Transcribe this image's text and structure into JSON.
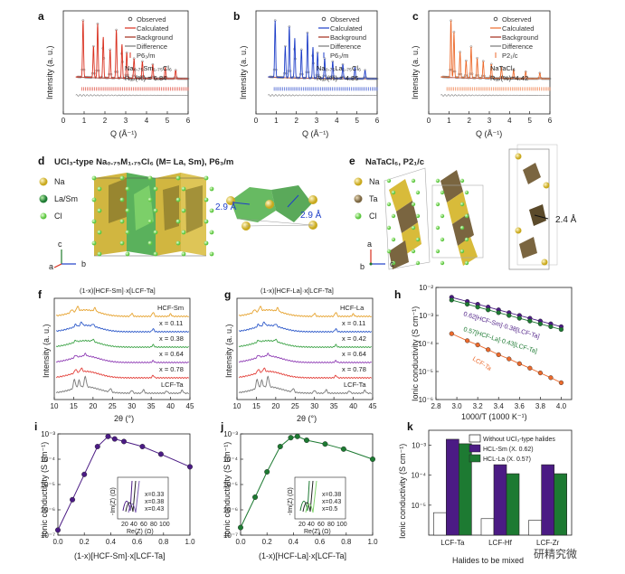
{
  "colors": {
    "red": "#d9301f",
    "blue": "#1f3fc8",
    "orange": "#ec6a2c",
    "purple": "#4b1b84",
    "green": "#1d7a32",
    "gray": "#777777",
    "gold": "#c9a91e",
    "lightgreen": "#7fd36a"
  },
  "panels": {
    "a": {
      "label": "a",
      "legend": [
        "Observed",
        "Calculated",
        "Background",
        "Difference"
      ],
      "space_group": "P6₃/m",
      "formula": "Na₀.₇₅Sm₁.₇₅Cl₆",
      "rwp": "Rᵤₚ(%) = 6.84",
      "ylabel": "Intensity (a. u.)",
      "xlabel": "Q (Å⁻¹)"
    },
    "b": {
      "label": "b",
      "legend": [
        "Observed",
        "Calculated",
        "Background",
        "Difference"
      ],
      "space_group": "P6₃/m",
      "formula": "Na₀.₇₅La₁.₇₅Cl₆",
      "rwp": "Rᵤₚ(%) = 4.86",
      "ylabel": "Intensity (a. u.)",
      "xlabel": "Q (Å⁻¹)"
    },
    "c": {
      "label": "c",
      "legend": [
        "Observed",
        "Calculated",
        "Background",
        "Difference"
      ],
      "space_group": "P2₁/c",
      "formula": "NaTaCl₆",
      "rwp": "Rᵤₚ(%)=4.42",
      "ylabel": "Intensity (a. u.)",
      "xlabel": "Q (Å⁻¹)"
    },
    "d": {
      "label": "d",
      "title": "UCl₃-type Na₀.₇₅M₁.₇₅Cl₆ (M= La, Sm), P6₃/m",
      "species": [
        "Na",
        "La/Sm",
        "Cl"
      ],
      "dist1": "2.9 Å",
      "dist2": "2.9 Å",
      "axes": [
        "c",
        "a",
        "b"
      ]
    },
    "e": {
      "label": "e",
      "title": "NaTaCl₆, P2₁/c",
      "species": [
        "Na",
        "Ta",
        "Cl"
      ],
      "dist": "2.4 Å",
      "axes": [
        "a",
        "b",
        "c"
      ]
    },
    "f": {
      "label": "f",
      "title": "(1-x)[HCF-Sm]·x[LCF-Ta]",
      "traces": [
        "HCF-Sm",
        "x = 0.11",
        "x = 0.38",
        "x = 0.64",
        "x = 0.78",
        "LCF-Ta"
      ],
      "ylabel": "Intensity (a. u.)",
      "xlabel": "2θ (°)"
    },
    "g": {
      "label": "g",
      "title": "(1-x)[HCF-La]·x[LCF-Ta]",
      "traces": [
        "HCF-La",
        "x = 0.11",
        "x = 0.42",
        "x = 0.64",
        "x = 0.78",
        "LCF-Ta"
      ],
      "ylabel": "Intensity (a. u.)",
      "xlabel": "2θ (°)"
    },
    "h": {
      "label": "h",
      "ylabel": "Ionic conductivity (S cm⁻¹)",
      "xlabel": "1000/T (1000 K⁻¹)",
      "series_labels": [
        "0.62[HCF-Sm]·0.38[LCF-Ta]",
        "0.57[HCF-La]·0.43[LCF-Ta]",
        "LCF-Ta"
      ]
    },
    "i": {
      "label": "i",
      "ylabel": "Ionic conductivity (S cm⁻¹)",
      "xlabel": "(1-x)[HCF-Sm]·x[LCF-Ta]",
      "inset_legend": [
        "x=0.33",
        "x=0.38",
        "x=0.43"
      ],
      "inset_ylabel": "-Im(Z) (Ω)",
      "inset_xlabel": "Re(Z) (Ω)",
      "inset_ticks": [
        "20",
        "40",
        "60",
        "80",
        "100"
      ]
    },
    "j": {
      "label": "j",
      "ylabel": "Ionic conductivity (S cm⁻¹)",
      "xlabel": "(1-x)[HCF-La]·x[LCF-Ta]",
      "inset_legend": [
        "x=0.38",
        "x=0.43",
        "x=0.5"
      ],
      "inset_ylabel": "-Im(Z) (Ω)",
      "inset_xlabel": "Re(Z) (Ω)",
      "inset_ticks": [
        "20",
        "40",
        "60",
        "80",
        "100"
      ]
    },
    "k": {
      "label": "k",
      "ylabel": "Ionic conductivity (S cm⁻¹)",
      "xlabel": "Halides to be mixed",
      "legend": [
        "Without UCl₃-type halides",
        "HCL-Sm (X. 0.62)",
        "HCL-La (X. 0.57)"
      ]
    }
  },
  "chart_data": [
    {
      "type": "line",
      "id": "xrd_a",
      "title": "",
      "xlabel": "Q (Å⁻¹)",
      "ylabel": "Intensity (a. u.)",
      "xlim": [
        0,
        6
      ],
      "ticks": [
        "0",
        "1",
        "2",
        "3",
        "4",
        "5",
        "6"
      ],
      "peaks": [
        [
          0.95,
          1.0
        ],
        [
          1.45,
          0.55
        ],
        [
          1.65,
          0.95
        ],
        [
          1.92,
          0.72
        ],
        [
          2.25,
          0.5
        ],
        [
          2.55,
          0.85
        ],
        [
          2.82,
          0.6
        ],
        [
          3.05,
          0.45
        ],
        [
          3.4,
          0.35
        ],
        [
          3.8,
          0.3
        ],
        [
          4.3,
          0.25
        ],
        [
          4.9,
          0.2
        ],
        [
          5.4,
          0.15
        ]
      ]
    },
    {
      "type": "line",
      "id": "xrd_b",
      "title": "",
      "xlabel": "Q (Å⁻¹)",
      "ylabel": "Intensity (a. u.)",
      "xlim": [
        0,
        6
      ],
      "ticks": [
        "0",
        "1",
        "2",
        "3",
        "4",
        "5",
        "6"
      ],
      "peaks": [
        [
          0.95,
          1.0
        ],
        [
          1.45,
          0.55
        ],
        [
          1.65,
          0.9
        ],
        [
          1.92,
          0.7
        ],
        [
          2.25,
          0.5
        ],
        [
          2.55,
          0.8
        ],
        [
          2.82,
          0.55
        ],
        [
          3.05,
          0.45
        ],
        [
          3.4,
          0.35
        ],
        [
          3.8,
          0.3
        ],
        [
          4.3,
          0.25
        ],
        [
          4.9,
          0.2
        ],
        [
          5.4,
          0.15
        ]
      ]
    },
    {
      "type": "line",
      "id": "xrd_c",
      "title": "",
      "xlabel": "Q (Å⁻¹)",
      "ylabel": "Intensity (a. u.)",
      "xlim": [
        0,
        6
      ],
      "ticks": [
        "0",
        "1",
        "2",
        "3",
        "4",
        "5",
        "6"
      ],
      "peaks": [
        [
          1.1,
          1.0
        ],
        [
          1.25,
          0.8
        ],
        [
          1.55,
          0.45
        ],
        [
          1.85,
          0.3
        ],
        [
          2.1,
          0.55
        ],
        [
          2.4,
          0.35
        ],
        [
          2.7,
          0.3
        ],
        [
          3.1,
          0.25
        ],
        [
          3.6,
          0.2
        ],
        [
          4.2,
          0.15
        ],
        [
          4.8,
          0.12
        ],
        [
          5.5,
          0.1
        ]
      ]
    },
    {
      "type": "line",
      "id": "xrd_f",
      "title": "(1-x)[HCF-Sm]·x[LCF-Ta]",
      "xlabel": "2θ (°)",
      "ylabel": "Intensity (a. u.)",
      "xlim": [
        10,
        45
      ],
      "ticks": [
        "10",
        "15",
        "20",
        "25",
        "30",
        "35",
        "40",
        "45"
      ]
    },
    {
      "type": "line",
      "id": "xrd_g",
      "title": "(1-x)[HCF-La]·x[LCF-Ta]",
      "xlabel": "2θ (°)",
      "ylabel": "Intensity (a. u.)",
      "xlim": [
        10,
        45
      ],
      "ticks": [
        "10",
        "15",
        "20",
        "25",
        "30",
        "35",
        "40",
        "45"
      ]
    },
    {
      "type": "scatter",
      "id": "arrhenius_h",
      "xlabel": "1000/T (1000 K⁻¹)",
      "ylabel": "Ionic conductivity (S cm⁻¹)",
      "xlim": [
        2.8,
        4.1
      ],
      "ylim_log10": [
        -6,
        -2
      ],
      "xticks": [
        "2.8",
        "3.0",
        "3.2",
        "3.4",
        "3.6",
        "3.8",
        "4.0"
      ],
      "yticks": [
        "10⁻⁶",
        "10⁻⁵",
        "10⁻⁴",
        "10⁻³",
        "10⁻²"
      ],
      "series": [
        {
          "name": "0.62[HCF-Sm]·0.38[LCF-Ta]",
          "color": "#4b1b84",
          "x": [
            2.95,
            3.1,
            3.2,
            3.3,
            3.4,
            3.5,
            3.6,
            3.7,
            3.8,
            3.9,
            4.0
          ],
          "log10y": [
            -2.35,
            -2.5,
            -2.6,
            -2.7,
            -2.8,
            -2.9,
            -3.0,
            -3.1,
            -3.2,
            -3.3,
            -3.4
          ]
        },
        {
          "name": "0.57[HCF-La]·0.43[LCF-Ta]",
          "color": "#1d7a32",
          "x": [
            2.95,
            3.1,
            3.2,
            3.3,
            3.4,
            3.5,
            3.6,
            3.7,
            3.8,
            3.9,
            4.0
          ],
          "log10y": [
            -2.45,
            -2.6,
            -2.7,
            -2.8,
            -2.9,
            -3.0,
            -3.1,
            -3.2,
            -3.3,
            -3.4,
            -3.5
          ]
        },
        {
          "name": "LCF-Ta",
          "color": "#ec6a2c",
          "x": [
            2.95,
            3.1,
            3.2,
            3.3,
            3.4,
            3.5,
            3.6,
            3.7,
            3.8,
            3.9,
            4.0
          ],
          "log10y": [
            -3.65,
            -3.9,
            -4.05,
            -4.22,
            -4.4,
            -4.55,
            -4.72,
            -4.88,
            -5.05,
            -5.22,
            -5.4
          ]
        }
      ]
    },
    {
      "type": "line",
      "id": "comp_i",
      "xlabel": "(1-x)[HCF-Sm]·x[LCF-Ta]",
      "ylabel": "Ionic conductivity (S cm⁻¹)",
      "xlim": [
        0,
        1
      ],
      "ylim_log10": [
        -7,
        -3
      ],
      "xticks": [
        "0.0",
        "0.2",
        "0.4",
        "0.6",
        "0.8",
        "1.0"
      ],
      "yticks": [
        "10⁻⁷",
        "10⁻⁶",
        "10⁻⁵",
        "10⁻⁴",
        "10⁻³"
      ],
      "color": "#4b1b84",
      "x": [
        0.0,
        0.11,
        0.2,
        0.3,
        0.38,
        0.43,
        0.5,
        0.64,
        0.78,
        1.0
      ],
      "log10y": [
        -6.8,
        -5.6,
        -4.6,
        -3.5,
        -3.1,
        -3.2,
        -3.3,
        -3.5,
        -3.8,
        -4.3
      ]
    },
    {
      "type": "line",
      "id": "comp_j",
      "xlabel": "(1-x)[HCF-La]·x[LCF-Ta]",
      "ylabel": "Ionic conductivity (S cm⁻¹)",
      "xlim": [
        0,
        1
      ],
      "ylim_log10": [
        -7,
        -3
      ],
      "xticks": [
        "0.0",
        "0.2",
        "0.4",
        "0.6",
        "0.8",
        "1.0"
      ],
      "yticks": [
        "10⁻⁷",
        "10⁻⁶",
        "10⁻⁵",
        "10⁻⁴",
        "10⁻³"
      ],
      "color": "#1d7a32",
      "x": [
        0.0,
        0.11,
        0.2,
        0.3,
        0.38,
        0.43,
        0.5,
        0.64,
        0.78,
        1.0
      ],
      "log10y": [
        -6.7,
        -5.5,
        -4.5,
        -3.5,
        -3.15,
        -3.1,
        -3.25,
        -3.4,
        -3.6,
        -4.0
      ]
    },
    {
      "type": "bar",
      "id": "bars_k",
      "xlabel": "Halides to be mixed",
      "ylabel": "Ionic conductivity (S cm⁻¹)",
      "categories": [
        "LCF-Ta",
        "LCF-Hf",
        "LCF-Zr"
      ],
      "ylim_log10": [
        -6,
        -2.5
      ],
      "yticks": [
        "10⁻⁵",
        "10⁻⁴",
        "10⁻³"
      ],
      "series": [
        {
          "name": "Without UCl₃-type halides",
          "color": "#ffffff",
          "log10y": [
            -5.25,
            -5.45,
            -5.5
          ]
        },
        {
          "name": "HCL-Sm (X. 0.62)",
          "color": "#4b1b84",
          "log10y": [
            -2.8,
            -3.65,
            -3.65
          ]
        },
        {
          "name": "HCL-La (X. 0.57)",
          "color": "#1d7a32",
          "log10y": [
            -2.95,
            -3.95,
            -3.95
          ]
        }
      ]
    }
  ],
  "watermark": "研精究微"
}
